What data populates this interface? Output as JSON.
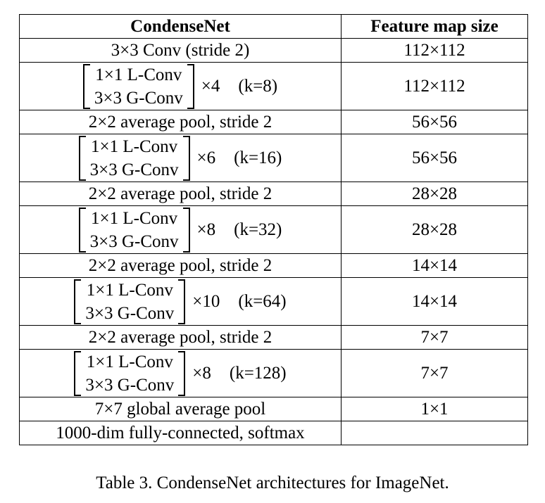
{
  "table": {
    "headers": [
      "CondenseNet",
      "Feature map size"
    ],
    "rows": [
      {
        "kind": "single",
        "text": "3×3 Conv (stride 2)",
        "size": "112×112"
      },
      {
        "kind": "block",
        "line1": "1×1 L-Conv",
        "line2": "3×3 G-Conv",
        "mult": "×4",
        "k": "(k=8)",
        "size": "112×112"
      },
      {
        "kind": "single",
        "text": "2×2 average pool, stride 2",
        "size": "56×56"
      },
      {
        "kind": "block",
        "line1": "1×1 L-Conv",
        "line2": "3×3 G-Conv",
        "mult": "×6",
        "k": "(k=16)",
        "size": "56×56"
      },
      {
        "kind": "single",
        "text": "2×2 average pool, stride 2",
        "size": "28×28"
      },
      {
        "kind": "block",
        "line1": "1×1 L-Conv",
        "line2": "3×3 G-Conv",
        "mult": "×8",
        "k": "(k=32)",
        "size": "28×28"
      },
      {
        "kind": "single",
        "text": "2×2 average pool, stride 2",
        "size": "14×14"
      },
      {
        "kind": "block",
        "line1": "1×1 L-Conv",
        "line2": "3×3 G-Conv",
        "mult": "×10",
        "k": "(k=64)",
        "size": "14×14"
      },
      {
        "kind": "single",
        "text": "2×2 average pool, stride 2",
        "size": "7×7"
      },
      {
        "kind": "block",
        "line1": "1×1 L-Conv",
        "line2": "3×3 G-Conv",
        "mult": "×8",
        "k": "(k=128)",
        "size": "7×7"
      },
      {
        "kind": "single",
        "text": "7×7 global average pool",
        "size": "1×1"
      },
      {
        "kind": "single",
        "text": "1000-dim fully-connected, softmax",
        "size": ""
      }
    ]
  },
  "caption": "Table 3. CondenseNet architectures for ImageNet."
}
